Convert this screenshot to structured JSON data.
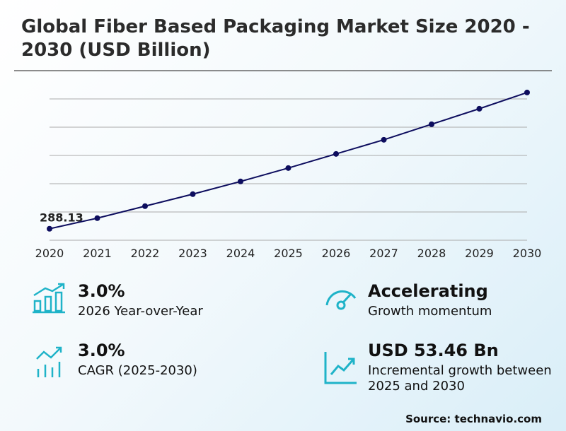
{
  "chart_data": {
    "type": "line",
    "title": "Global Fiber Based Packaging Market Size 2020 - 2030 (USD Billion)",
    "categories": [
      "2020",
      "2021",
      "2022",
      "2023",
      "2024",
      "2025",
      "2026",
      "2027",
      "2028",
      "2029",
      "2030"
    ],
    "values": [
      288.13,
      295.62,
      304.12,
      312.61,
      321.6,
      331.09,
      341.09,
      351.08,
      362.07,
      373.06,
      384.55
    ],
    "color": "#0d0d5e",
    "ylim": [
      280,
      380
    ]
  },
  "stats": [
    {
      "value": "3.0%",
      "label": "2026 Year-over-Year"
    },
    {
      "value": "Accelerating",
      "label": "Growth momentum"
    },
    {
      "value": "3.0%",
      "label": "CAGR (2025-2030)"
    },
    {
      "value": "USD 53.46 Bn",
      "label": "Incremental growth between 2025 and 2030"
    }
  ],
  "source": "Source: technavio.com"
}
